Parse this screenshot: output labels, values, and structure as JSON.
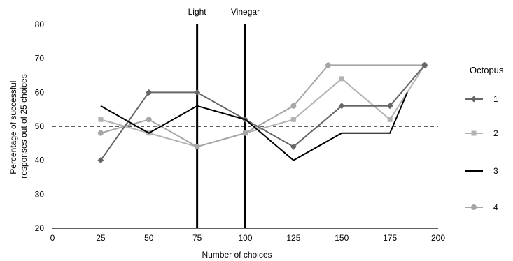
{
  "chart_data": {
    "type": "line",
    "title": "",
    "xlabel": "Number of choices",
    "ylabel": "Percentage of successful responses  out of 25 choices",
    "ylabel_lines": [
      "Percentage of successful",
      "responses  out of 25 choices"
    ],
    "xlim": [
      0,
      200
    ],
    "ylim": [
      20,
      80
    ],
    "x_ticks": [
      0,
      25,
      50,
      75,
      100,
      125,
      150,
      175,
      200
    ],
    "y_ticks": [
      20,
      30,
      40,
      50,
      60,
      70,
      80
    ],
    "grid": false,
    "legend": {
      "title": "Octopus",
      "placement": "right"
    },
    "reference_line": {
      "y": 50,
      "style": "dashed"
    },
    "vertical_markers": [
      {
        "x": 75,
        "label": "Light"
      },
      {
        "x": 100,
        "label": "Vinegar"
      }
    ],
    "series": [
      {
        "name": "1",
        "color": "#666666",
        "marker": "diamond",
        "x": [
          25,
          50,
          75,
          100,
          125,
          150,
          175,
          193
        ],
        "values": [
          40,
          60,
          60,
          52,
          44,
          56,
          56,
          68
        ]
      },
      {
        "name": "2",
        "color": "#b3b3b3",
        "marker": "square",
        "x": [
          25,
          50,
          75,
          100,
          125,
          150,
          175,
          193
        ],
        "values": [
          52,
          48,
          44,
          48,
          52,
          64,
          52,
          68
        ]
      },
      {
        "name": "3",
        "color": "#000000",
        "marker": "none",
        "x": [
          25,
          50,
          75,
          100,
          125,
          150,
          175,
          184
        ],
        "values": [
          56,
          48,
          56,
          52,
          40,
          48,
          48,
          60
        ]
      },
      {
        "name": "4",
        "color": "#a6a6a6",
        "marker": "circle",
        "x": [
          25,
          50,
          75,
          100,
          125,
          143,
          193
        ],
        "values": [
          48,
          52,
          44,
          48,
          56,
          68,
          68
        ]
      }
    ]
  }
}
